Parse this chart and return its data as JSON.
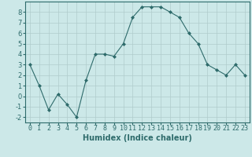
{
  "x": [
    0,
    1,
    2,
    3,
    4,
    5,
    6,
    7,
    8,
    9,
    10,
    11,
    12,
    13,
    14,
    15,
    16,
    17,
    18,
    19,
    20,
    21,
    22,
    23
  ],
  "y": [
    3,
    1,
    -1.3,
    0.2,
    -0.8,
    -2,
    1.5,
    4,
    4,
    3.8,
    5,
    7.5,
    8.5,
    8.5,
    8.5,
    8,
    7.5,
    6,
    5,
    3,
    2.5,
    2,
    3,
    2
  ],
  "line_color": "#2e6b6b",
  "marker": "D",
  "marker_size": 2.0,
  "bg_color": "#cce8e8",
  "grid_color": "#b0cccc",
  "xlabel": "Humidex (Indice chaleur)",
  "xlim": [
    -0.5,
    23.5
  ],
  "ylim": [
    -2.5,
    9.0
  ],
  "yticks": [
    -2,
    -1,
    0,
    1,
    2,
    3,
    4,
    5,
    6,
    7,
    8
  ],
  "xticks": [
    0,
    1,
    2,
    3,
    4,
    5,
    6,
    7,
    8,
    9,
    10,
    11,
    12,
    13,
    14,
    15,
    16,
    17,
    18,
    19,
    20,
    21,
    22,
    23
  ],
  "xlabel_fontsize": 7.0,
  "tick_fontsize": 6.0,
  "tick_color": "#2e6b6b",
  "spine_color": "#2e6b6b",
  "line_width": 0.8
}
